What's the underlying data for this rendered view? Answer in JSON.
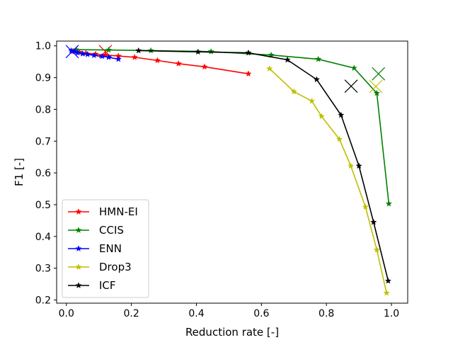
{
  "chart_data": {
    "type": "line",
    "title": "",
    "xlabel": "Reduction rate [-]",
    "ylabel": "F1 [-]",
    "xlim": [
      -0.03,
      1.05
    ],
    "ylim": [
      0.19,
      1.015
    ],
    "xticks": [
      0.0,
      0.2,
      0.4,
      0.6,
      0.8,
      1.0
    ],
    "xtick_labels": [
      "0.0",
      "0.2",
      "0.4",
      "0.6",
      "0.8",
      "1.0"
    ],
    "yticks": [
      0.2,
      0.3,
      0.4,
      0.5,
      0.6,
      0.7,
      0.8,
      0.9,
      1.0
    ],
    "ytick_labels": [
      "0.2",
      "0.3",
      "0.4",
      "0.5",
      "0.6",
      "0.7",
      "0.8",
      "0.9",
      "1.0"
    ],
    "grid": false,
    "legend_position": "lower-left",
    "series": [
      {
        "name": "HMN-EI",
        "color": "#ff0000",
        "marker": "star",
        "x": [
          0.02,
          0.04,
          0.06,
          0.09,
          0.12,
          0.16,
          0.21,
          0.28,
          0.345,
          0.425,
          0.56
        ],
        "y": [
          0.983,
          0.98,
          0.977,
          0.974,
          0.971,
          0.968,
          0.964,
          0.954,
          0.944,
          0.934,
          0.912
        ],
        "extra_point": {
          "x": 0.12,
          "y": 0.982,
          "marker": "x"
        }
      },
      {
        "name": "CCIS",
        "color": "#008000",
        "marker": "star",
        "x": [
          0.03,
          0.13,
          0.26,
          0.445,
          0.63,
          0.775,
          0.885,
          0.955,
          0.992
        ],
        "y": [
          0.988,
          0.987,
          0.985,
          0.982,
          0.971,
          0.958,
          0.93,
          0.851,
          0.503
        ],
        "extra_point": {
          "x": 0.96,
          "y": 0.912,
          "marker": "x"
        }
      },
      {
        "name": "ENN",
        "color": "#0000ff",
        "marker": "star",
        "x": [
          0.015,
          0.025,
          0.035,
          0.05,
          0.065,
          0.085,
          0.11,
          0.13,
          0.16
        ],
        "y": [
          0.985,
          0.982,
          0.978,
          0.975,
          0.973,
          0.97,
          0.967,
          0.964,
          0.958
        ],
        "extra_point": {
          "x": 0.018,
          "y": 0.982,
          "marker": "x"
        }
      },
      {
        "name": "Drop3",
        "color": "#bfbf00",
        "marker": "star",
        "x": [
          0.625,
          0.7,
          0.755,
          0.785,
          0.84,
          0.875,
          0.92,
          0.955,
          0.985
        ],
        "y": [
          0.928,
          0.856,
          0.826,
          0.778,
          0.706,
          0.622,
          0.493,
          0.358,
          0.222
        ],
        "extra_point": {
          "x": 0.952,
          "y": 0.872,
          "marker": "x"
        }
      },
      {
        "name": "ICF",
        "color": "#000000",
        "marker": "star",
        "x": [
          0.222,
          0.405,
          0.56,
          0.68,
          0.77,
          0.845,
          0.9,
          0.945,
          0.99
        ],
        "y": [
          0.985,
          0.981,
          0.978,
          0.956,
          0.894,
          0.782,
          0.622,
          0.445,
          0.26
        ],
        "extra_point": {
          "x": 0.876,
          "y": 0.873,
          "marker": "x"
        }
      }
    ]
  }
}
